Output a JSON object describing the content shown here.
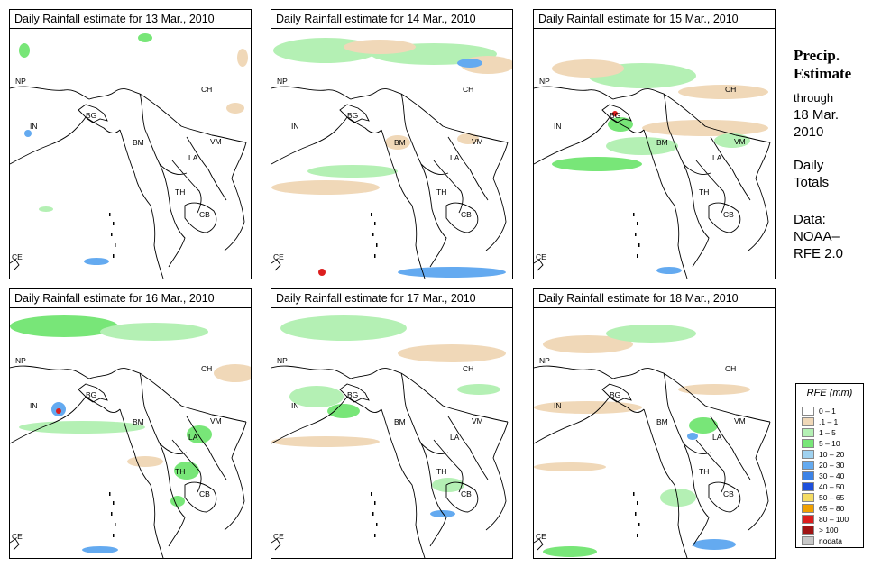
{
  "panels": [
    {
      "title": "Daily Rainfall estimate for  13 Mar., 2010"
    },
    {
      "title": "Daily Rainfall estimate for  14 Mar., 2010"
    },
    {
      "title": "Daily Rainfall estimate for  15 Mar., 2010"
    },
    {
      "title": "Daily Rainfall estimate for  16 Mar., 2010"
    },
    {
      "title": "Daily Rainfall estimate for  17 Mar., 2010"
    },
    {
      "title": "Daily Rainfall estimate for  18 Mar., 2010"
    }
  ],
  "countries": [
    "NP",
    "IN",
    "BG",
    "BM",
    "CH",
    "VM",
    "LA",
    "TH",
    "CB",
    "CE"
  ],
  "sidebar": {
    "line1": "Precip.",
    "line2": "Estimate",
    "line3": "through",
    "line4": "18 Mar.",
    "line5": "2010",
    "line6": "Daily",
    "line7": "Totals",
    "line8": "Data:",
    "line9": "NOAA–",
    "line10": "RFE 2.0"
  },
  "legend": {
    "title": "RFE (mm)",
    "items": [
      {
        "label": "0 – 1",
        "color": "#ffffff"
      },
      {
        "label": ".1 – 1",
        "color": "#f0d8b8"
      },
      {
        "label": "1 – 5",
        "color": "#b4f0b4"
      },
      {
        "label": "5 – 10",
        "color": "#78e678"
      },
      {
        "label": "10 – 20",
        "color": "#a0d2f0"
      },
      {
        "label": "20 – 30",
        "color": "#64aaf0"
      },
      {
        "label": "30 – 40",
        "color": "#3c82e6"
      },
      {
        "label": "40 – 50",
        "color": "#1e50dc"
      },
      {
        "label": "50 – 65",
        "color": "#f5dc64"
      },
      {
        "label": "65 – 80",
        "color": "#f0a000"
      },
      {
        "label": "80 – 100",
        "color": "#dc1e1e"
      },
      {
        "label": "> 100",
        "color": "#a01414"
      },
      {
        "label": "nodata",
        "color": "#c8c8c8"
      }
    ]
  },
  "colors": {
    "tan": "#f0d8b8",
    "light_green": "#b4f0b4",
    "green": "#78e678",
    "blue": "#64aaf0",
    "red": "#dc1e1e",
    "border": "#000000"
  }
}
